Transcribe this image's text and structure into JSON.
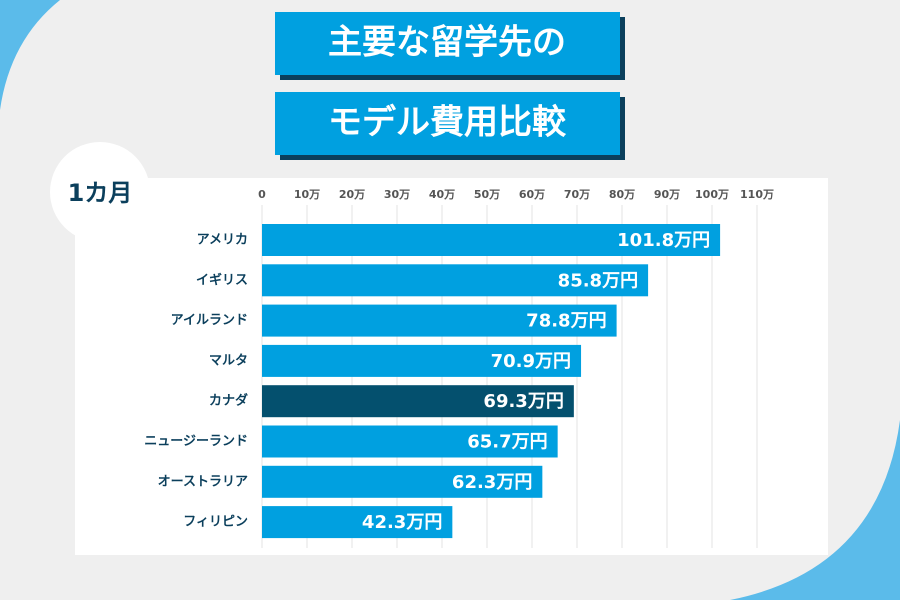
{
  "chart_data": {
    "type": "bar",
    "orientation": "horizontal",
    "title": "主要な留学先の",
    "subtitle": "モデル費用比較",
    "period": "1カ月",
    "categories": [
      "アメリカ",
      "イギリス",
      "アイルランド",
      "マルタ",
      "カナダ",
      "ニュージーランド",
      "オーストラリア",
      "フィリピン"
    ],
    "values": [
      101.8,
      85.8,
      78.8,
      70.9,
      69.3,
      65.7,
      62.3,
      42.3
    ],
    "value_labels": [
      "101.8万円",
      "85.8万円",
      "78.8万円",
      "70.9万円",
      "69.3万円",
      "65.7万円",
      "62.3万円",
      "42.3万円"
    ],
    "colors": [
      "#00a0e0",
      "#00a0e0",
      "#00a0e0",
      "#00a0e0",
      "#04506e",
      "#00a0e0",
      "#00a0e0",
      "#00a0e0"
    ],
    "xlim": [
      0,
      110
    ],
    "xticks": [
      0,
      {
        "value": 10,
        "label": "10万"
      },
      {
        "value": 20,
        "label": "20万"
      },
      {
        "value": 30,
        "label": "30万"
      },
      {
        "value": 40,
        "label": "40万"
      },
      {
        "value": 50,
        "label": "50万"
      },
      {
        "value": 60,
        "label": "60万"
      },
      {
        "value": 70,
        "label": "70万"
      },
      {
        "value": 80,
        "label": "80万"
      },
      {
        "value": 90,
        "label": "90万"
      },
      {
        "value": 100,
        "label": "100万"
      },
      {
        "value": 110,
        "label": "110万"
      }
    ],
    "grid": true
  }
}
